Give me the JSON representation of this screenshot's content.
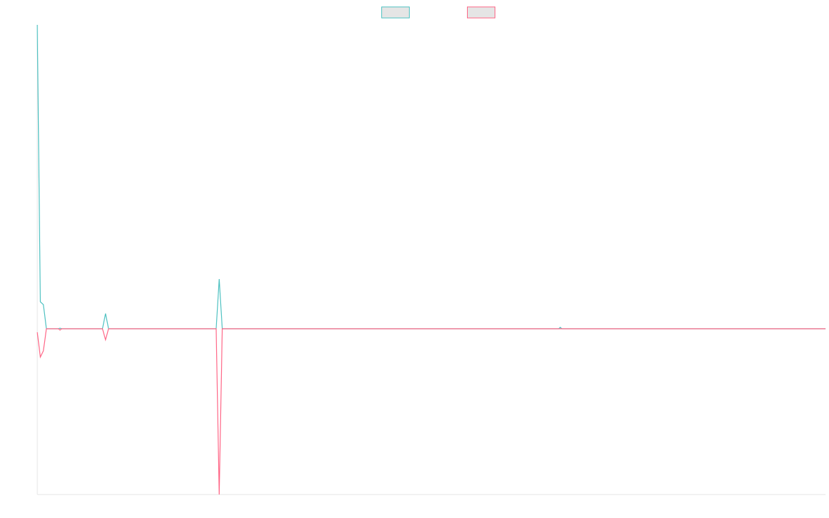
{
  "chart_data": {
    "type": "line",
    "x": [
      0,
      1,
      2,
      3,
      7,
      7.5,
      8,
      21.5,
      22.5,
      23.5,
      59,
      60,
      61,
      172,
      172.5,
      173,
      260
    ],
    "xlim": [
      0,
      260
    ],
    "ylim": [
      -60,
      110
    ],
    "legend": "top",
    "series": [
      {
        "color": "#4bc0c0",
        "values": [
          110,
          9.75,
          8.75,
          0,
          0,
          0.2,
          0,
          0,
          5.5,
          0,
          0,
          18,
          0,
          0,
          0.5,
          0,
          0
        ]
      },
      {
        "color": "#ff6384",
        "values": [
          -1.25,
          -10.25,
          -8,
          0,
          0,
          -0.5,
          0,
          0,
          -4,
          0,
          0,
          -60,
          0,
          0,
          0,
          0,
          0
        ]
      }
    ]
  }
}
